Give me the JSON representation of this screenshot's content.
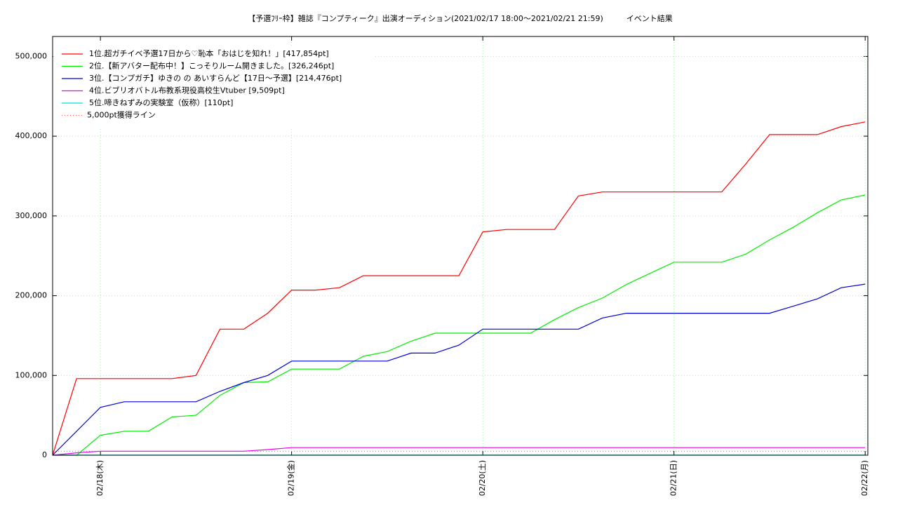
{
  "chart_data": {
    "type": "line",
    "title": "【予選ﾌﾘｰ枠】雑誌『コンプティーク』出演オーディション(2021/02/17 18:00〜2021/02/21 21:59)　　　イベント結果",
    "x": [
      "02/17 18:00",
      "02/17 21:00",
      "02/18 00:00",
      "02/18 03:00",
      "02/18 06:00",
      "02/18 09:00",
      "02/18 12:00",
      "02/18 15:00",
      "02/18 18:00",
      "02/18 21:00",
      "02/19 00:00",
      "02/19 03:00",
      "02/19 06:00",
      "02/19 09:00",
      "02/19 12:00",
      "02/19 15:00",
      "02/19 18:00",
      "02/19 21:00",
      "02/20 00:00",
      "02/20 03:00",
      "02/20 06:00",
      "02/20 09:00",
      "02/20 12:00",
      "02/20 15:00",
      "02/20 18:00",
      "02/20 21:00",
      "02/21 00:00",
      "02/21 03:00",
      "02/21 06:00",
      "02/21 09:00",
      "02/21 12:00",
      "02/21 15:00",
      "02/21 18:00",
      "02/21 21:00",
      "02/22 00:00"
    ],
    "series": [
      {
        "name": "1位.超ガチイベ予選17日から♡恥本「おはじを知れ！」[417,854pt]",
        "color": "#ff0000",
        "values": [
          0,
          96000,
          96000,
          96000,
          96000,
          96000,
          100000,
          158000,
          158000,
          178000,
          207000,
          207000,
          210000,
          225000,
          225000,
          225000,
          225000,
          225000,
          280000,
          283000,
          283000,
          283000,
          325000,
          330000,
          330000,
          330000,
          330000,
          330000,
          330000,
          365000,
          402000,
          402000,
          402000,
          412000,
          417854
        ]
      },
      {
        "name": "2位.【新アバター配布中！】こっそりルーム開きました。[326,246pt]",
        "color": "#00ee00",
        "values": [
          0,
          0,
          25000,
          30000,
          30000,
          48000,
          50000,
          75000,
          91000,
          92000,
          108000,
          108000,
          108000,
          124000,
          130000,
          143000,
          153000,
          153000,
          153000,
          153000,
          153000,
          170000,
          185000,
          197000,
          214000,
          228000,
          242000,
          242000,
          242000,
          252000,
          270000,
          286000,
          304000,
          320000,
          326246
        ]
      },
      {
        "name": "3位.【コンプガチ】ゆきの の あいすらんど【17日〜予選】[214,476pt]",
        "color": "#0000dd",
        "values": [
          0,
          30000,
          60000,
          67000,
          67000,
          67000,
          67000,
          80000,
          91000,
          100000,
          118000,
          118000,
          118000,
          118000,
          118000,
          128000,
          128000,
          138000,
          158000,
          158000,
          158000,
          158000,
          158000,
          172000,
          178000,
          178000,
          178000,
          178000,
          178000,
          178000,
          178000,
          187000,
          196000,
          210000,
          214476
        ]
      },
      {
        "name": "4位.ビブリオバトル布教系現役高校生Vtuber [9,509pt]",
        "color": "#ee00ee",
        "values": [
          0,
          3000,
          5000,
          5000,
          5000,
          5000,
          5000,
          5000,
          5000,
          7000,
          9509,
          9509,
          9509,
          9509,
          9509,
          9509,
          9509,
          9509,
          9509,
          9509,
          9509,
          9509,
          9509,
          9509,
          9509,
          9509,
          9509,
          9509,
          9509,
          9509,
          9509,
          9509,
          9509,
          9509,
          9509
        ]
      },
      {
        "name": "5位.啼きねずみの実験室（仮称）[110pt]",
        "color": "#00dddd",
        "values": [
          0,
          110,
          110,
          110,
          110,
          110,
          110,
          110,
          110,
          110,
          110,
          110,
          110,
          110,
          110,
          110,
          110,
          110,
          110,
          110,
          110,
          110,
          110,
          110,
          110,
          110,
          110,
          110,
          110,
          110,
          110,
          110,
          110,
          110,
          110
        ]
      }
    ],
    "threshold": {
      "name": "5,000pt獲得ライン",
      "value": 5000,
      "color": "#ff6666"
    },
    "xlim": [
      "02/17 18:00",
      "02/22 00:20"
    ],
    "xticks": [
      {
        "value": "02/18 00:00",
        "label": "02/18(木)"
      },
      {
        "value": "02/19 00:00",
        "label": "02/19(金)"
      },
      {
        "value": "02/20 00:00",
        "label": "02/20(土)"
      },
      {
        "value": "02/21 00:00",
        "label": "02/21(日)"
      },
      {
        "value": "02/22 00:00",
        "label": "02/22(月)"
      }
    ],
    "ylim": [
      0,
      525000
    ],
    "yticks": [
      0,
      {
        "value": 100000,
        "label": "100,000"
      },
      {
        "value": 200000,
        "label": "200,000"
      },
      {
        "value": 300000,
        "label": "300,000"
      },
      {
        "value": 400000,
        "label": "400,000"
      },
      {
        "value": 500000,
        "label": "500,000"
      }
    ],
    "grid": true,
    "legend": "top-left"
  }
}
